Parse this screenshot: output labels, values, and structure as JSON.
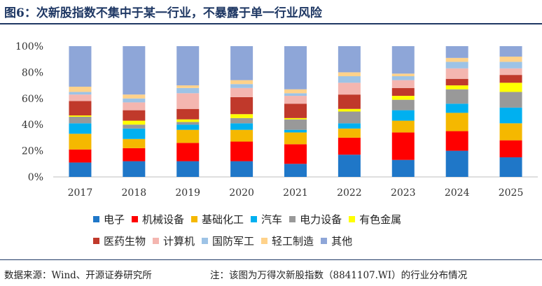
{
  "header": {
    "title": "图6：次新股指数不集中于某一行业，不暴露于单一行业风险"
  },
  "footer": {
    "source": "数据来源：Wind、开源证券研究所",
    "note": "注：该图为万得次新股指数（8841107.WI）的行业分布情况"
  },
  "chart_data": {
    "type": "bar",
    "stacked": true,
    "categories": [
      "2017",
      "2018",
      "2019",
      "2020",
      "2021",
      "2022",
      "2023",
      "2024",
      "2025"
    ],
    "ylim": [
      0,
      100
    ],
    "yticks": [
      "0%",
      "20%",
      "40%",
      "60%",
      "80%",
      "100%"
    ],
    "legend_position": "bottom",
    "series": [
      {
        "name": "电子",
        "color": "#1f77c8",
        "values": [
          11,
          12,
          12,
          12,
          10,
          17,
          13,
          20,
          15
        ]
      },
      {
        "name": "机械设备",
        "color": "#ff0000",
        "values": [
          10,
          10,
          14,
          15,
          15,
          13,
          21,
          15,
          13
        ]
      },
      {
        "name": "基础化工",
        "color": "#f5b800",
        "values": [
          12,
          7,
          10,
          9,
          9,
          7,
          9,
          14,
          13
        ]
      },
      {
        "name": "汽车",
        "color": "#00b0f0",
        "values": [
          8,
          8,
          4,
          5,
          2,
          4,
          8,
          7,
          12
        ]
      },
      {
        "name": "电力设备",
        "color": "#999999",
        "values": [
          5,
          3,
          2,
          4,
          8,
          9,
          8,
          11,
          12
        ]
      },
      {
        "name": "有色金属",
        "color": "#ffff00",
        "values": [
          1,
          3,
          2,
          3,
          1,
          2,
          3,
          3,
          7
        ]
      },
      {
        "name": "医药生物",
        "color": "#c0392b",
        "values": [
          11,
          8,
          8,
          13,
          11,
          11,
          6,
          5,
          6
        ]
      },
      {
        "name": "计算机",
        "color": "#f4b6b0",
        "values": [
          5,
          6,
          12,
          7,
          6,
          9,
          6,
          8,
          5
        ]
      },
      {
        "name": "国防军工",
        "color": "#9dc3e6",
        "values": [
          2,
          3,
          4,
          3,
          2,
          5,
          3,
          5,
          5
        ]
      },
      {
        "name": "轻工制造",
        "color": "#ffd28a",
        "values": [
          4,
          3,
          2,
          3,
          3,
          3,
          2,
          3,
          4
        ]
      },
      {
        "name": "其他",
        "color": "#8ea6d8",
        "values": [
          31,
          37,
          30,
          26,
          33,
          20,
          21,
          9,
          8
        ]
      }
    ]
  }
}
